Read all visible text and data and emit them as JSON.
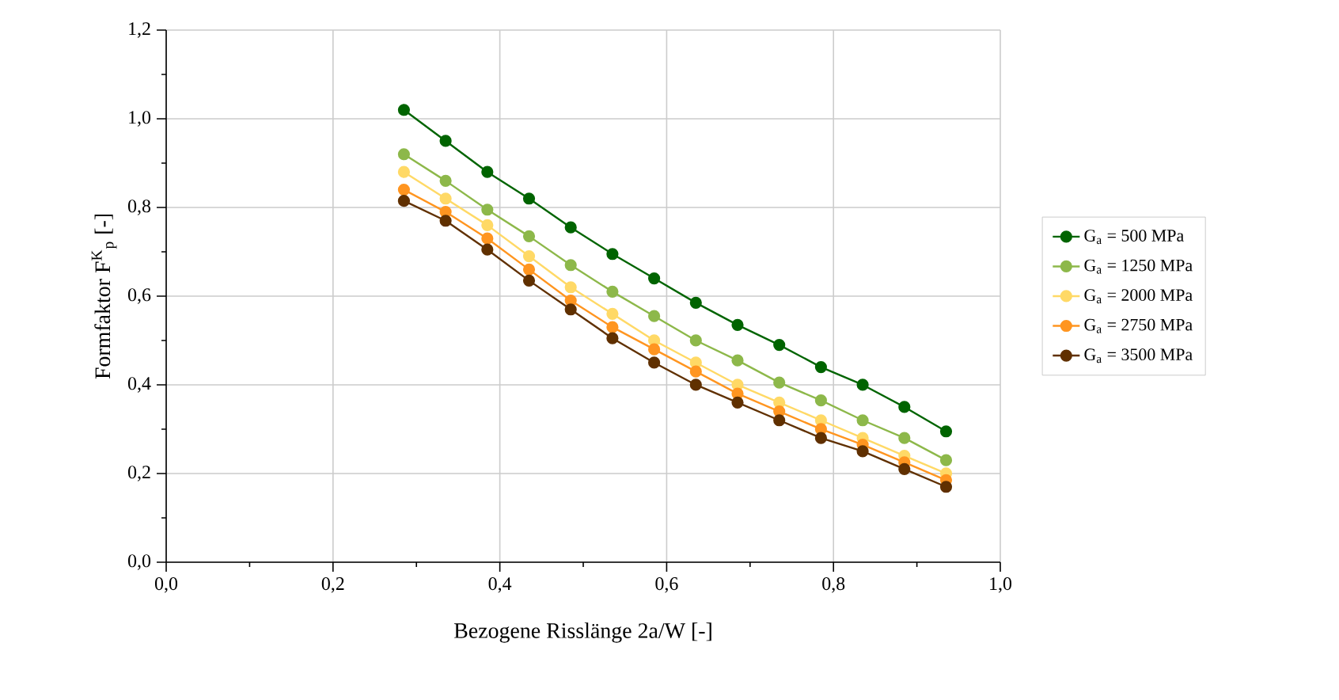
{
  "chart_data": {
    "type": "line",
    "xlabel": "Bezogene Risslänge 2a/W [-]",
    "ylabel": "Formfaktor F$^{K}$$_{p}$ [-]",
    "x": [
      0.285,
      0.335,
      0.385,
      0.435,
      0.485,
      0.535,
      0.585,
      0.635,
      0.685,
      0.735,
      0.785,
      0.835,
      0.885,
      0.935
    ],
    "series": [
      {
        "name": "G$_{a}$ = 500 MPa",
        "color": "#006400",
        "values": [
          1.02,
          0.95,
          0.88,
          0.82,
          0.755,
          0.695,
          0.64,
          0.585,
          0.535,
          0.49,
          0.44,
          0.4,
          0.35,
          0.295
        ]
      },
      {
        "name": "G$_{a}$ = 1250 MPa",
        "color": "#8db84a",
        "values": [
          0.92,
          0.86,
          0.795,
          0.735,
          0.67,
          0.61,
          0.555,
          0.5,
          0.455,
          0.405,
          0.365,
          0.32,
          0.28,
          0.23
        ]
      },
      {
        "name": "G$_{a}$ = 2000 MPa",
        "color": "#ffd966",
        "values": [
          0.88,
          0.82,
          0.76,
          0.69,
          0.62,
          0.56,
          0.5,
          0.45,
          0.4,
          0.36,
          0.32,
          0.28,
          0.24,
          0.2
        ]
      },
      {
        "name": "G$_{a}$ = 2750 MPa",
        "color": "#ff9520",
        "values": [
          0.84,
          0.79,
          0.73,
          0.66,
          0.59,
          0.53,
          0.48,
          0.43,
          0.38,
          0.34,
          0.3,
          0.265,
          0.225,
          0.185
        ]
      },
      {
        "name": "G$_{a}$ = 3500 MPa",
        "color": "#603000",
        "values": [
          0.815,
          0.77,
          0.705,
          0.635,
          0.57,
          0.505,
          0.45,
          0.4,
          0.36,
          0.32,
          0.28,
          0.25,
          0.21,
          0.17
        ]
      }
    ],
    "xlim": [
      0,
      1
    ],
    "ylim": [
      0,
      1.2
    ],
    "xticks": [
      {
        "value": 0,
        "label": "0,0"
      },
      {
        "value": 0.2,
        "label": "0,2"
      },
      {
        "value": 0.4,
        "label": "0,4"
      },
      {
        "value": 0.6,
        "label": "0,6"
      },
      {
        "value": 0.8,
        "label": "0,8"
      },
      {
        "value": 1,
        "label": "1,0"
      }
    ],
    "yticks": [
      {
        "value": 0,
        "label": "0,0"
      },
      {
        "value": 0.2,
        "label": "0,2"
      },
      {
        "value": 0.4,
        "label": "0,4"
      },
      {
        "value": 0.6,
        "label": "0,6"
      },
      {
        "value": 0.8,
        "label": "0,8"
      },
      {
        "value": 1,
        "label": "1,0"
      },
      {
        "value": 1.2,
        "label": "1,2"
      }
    ],
    "grid": true,
    "legend": "right",
    "marker": "circle",
    "line_style": "solid"
  }
}
